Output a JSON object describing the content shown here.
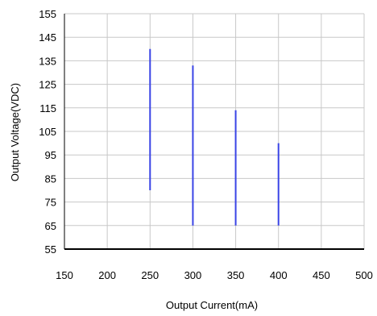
{
  "chart_data": {
    "type": "line",
    "xlabel": "Output Current(mA)",
    "ylabel": "Output Voltage(VDC)",
    "xlim": [
      150,
      500
    ],
    "ylim": [
      55,
      155
    ],
    "x_ticks": [
      150,
      200,
      250,
      300,
      350,
      400,
      450,
      500
    ],
    "y_ticks": [
      55,
      65,
      75,
      85,
      95,
      105,
      115,
      125,
      135,
      145,
      155
    ],
    "grid": true,
    "series": [
      {
        "x": [
          250,
          250
        ],
        "y": [
          80,
          140
        ]
      },
      {
        "x": [
          300,
          300
        ],
        "y": [
          65,
          133
        ]
      },
      {
        "x": [
          350,
          350
        ],
        "y": [
          65,
          114
        ]
      },
      {
        "x": [
          400,
          400
        ],
        "y": [
          65,
          100
        ]
      }
    ],
    "colors": {
      "series": "#3a44e6",
      "grid": "#c8c8c8",
      "axis": "#000000"
    }
  }
}
